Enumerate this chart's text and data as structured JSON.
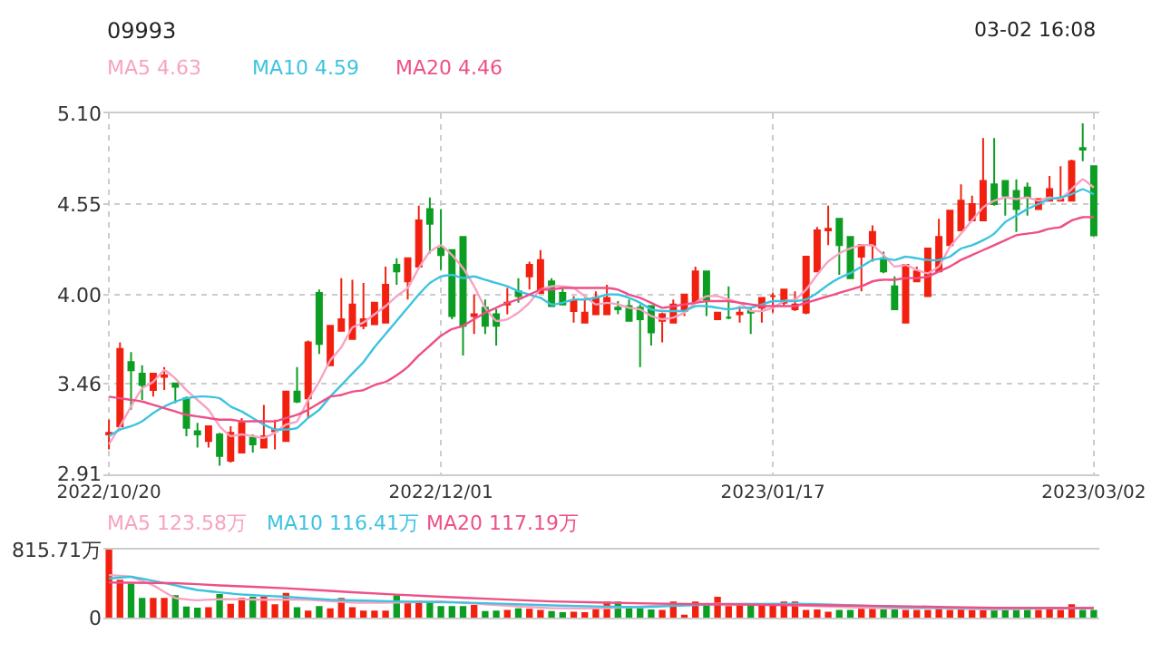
{
  "chart_data": [
    {
      "type": "candlestick",
      "title": "09993",
      "annotations": [
        "03-02 16:08"
      ],
      "categories": [
        "2022/10/20",
        null,
        null,
        null,
        null,
        null,
        null,
        null,
        null,
        null,
        null,
        null,
        null,
        null,
        null,
        null,
        null,
        null,
        null,
        null,
        null,
        null,
        null,
        null,
        null,
        null,
        null,
        null,
        null,
        null,
        "2022/12/01",
        null,
        null,
        null,
        null,
        null,
        null,
        null,
        null,
        null,
        null,
        null,
        null,
        null,
        null,
        null,
        null,
        null,
        null,
        null,
        null,
        null,
        null,
        null,
        null,
        null,
        null,
        null,
        null,
        null,
        "2023/01/17",
        null,
        null,
        null,
        null,
        null,
        null,
        null,
        null,
        null,
        null,
        null,
        null,
        null,
        null,
        null,
        null,
        null,
        null,
        null,
        null,
        null,
        null,
        null,
        null,
        null,
        null,
        null,
        null,
        "2023/03/02"
      ],
      "ohlc": [
        [
          3.15,
          3.24,
          3.06,
          3.16
        ],
        [
          3.2,
          3.71,
          3.2,
          3.67
        ],
        [
          3.59,
          3.65,
          3.3,
          3.54
        ],
        [
          3.52,
          3.57,
          3.36,
          3.45
        ],
        [
          3.42,
          3.52,
          3.38,
          3.52
        ],
        [
          3.5,
          3.56,
          3.42,
          3.51
        ],
        [
          3.46,
          3.46,
          3.34,
          3.44
        ],
        [
          3.37,
          3.38,
          3.14,
          3.19
        ],
        [
          3.17,
          3.22,
          3.07,
          3.15
        ],
        [
          3.11,
          3.2,
          3.07,
          3.2
        ],
        [
          3.15,
          3.16,
          2.96,
          3.02
        ],
        [
          2.99,
          3.2,
          2.98,
          3.16
        ],
        [
          3.04,
          3.25,
          3.04,
          3.22
        ],
        [
          3.13,
          3.15,
          3.04,
          3.09
        ],
        [
          3.07,
          3.33,
          3.07,
          3.14
        ],
        [
          3.17,
          3.24,
          3.06,
          3.18
        ],
        [
          3.11,
          3.41,
          3.11,
          3.41
        ],
        [
          3.41,
          3.56,
          3.34,
          3.35
        ],
        [
          3.37,
          3.72,
          3.25,
          3.71
        ],
        [
          4.01,
          4.03,
          3.64,
          3.7
        ],
        [
          3.57,
          3.81,
          3.57,
          3.81
        ],
        [
          3.78,
          4.1,
          3.78,
          3.85
        ],
        [
          3.73,
          4.09,
          3.73,
          3.94
        ],
        [
          3.81,
          4.07,
          3.79,
          3.85
        ],
        [
          3.82,
          3.95,
          3.82,
          3.95
        ],
        [
          3.83,
          4.17,
          3.83,
          4.06
        ],
        [
          4.18,
          4.22,
          4.06,
          4.14
        ],
        [
          4.08,
          4.22,
          3.97,
          4.22
        ],
        [
          4.17,
          4.54,
          4.17,
          4.45
        ],
        [
          4.52,
          4.59,
          4.25,
          4.43
        ],
        [
          4.28,
          4.52,
          4.15,
          4.24
        ],
        [
          4.27,
          4.27,
          3.85,
          3.87
        ],
        [
          4.35,
          4.35,
          3.63,
          3.81
        ],
        [
          3.87,
          4.0,
          3.76,
          3.88
        ],
        [
          3.92,
          3.97,
          3.76,
          3.81
        ],
        [
          3.88,
          3.91,
          3.69,
          3.81
        ],
        [
          3.94,
          4.04,
          3.88,
          3.95
        ],
        [
          4.02,
          4.1,
          3.95,
          3.99
        ],
        [
          4.11,
          4.2,
          4.03,
          4.18
        ],
        [
          4.01,
          4.27,
          4.01,
          4.21
        ],
        [
          4.08,
          4.1,
          3.93,
          3.93
        ],
        [
          4.01,
          4.05,
          3.94,
          3.94
        ],
        [
          3.9,
          3.99,
          3.83,
          3.96
        ],
        [
          3.83,
          3.98,
          3.83,
          3.89
        ],
        [
          3.88,
          4.02,
          3.88,
          3.98
        ],
        [
          3.88,
          4.06,
          3.88,
          3.98
        ],
        [
          3.92,
          3.96,
          3.88,
          3.91
        ],
        [
          3.93,
          3.97,
          3.84,
          3.84
        ],
        [
          3.92,
          3.94,
          3.56,
          3.85
        ],
        [
          3.93,
          3.93,
          3.69,
          3.77
        ],
        [
          3.84,
          3.89,
          3.71,
          3.88
        ],
        [
          3.83,
          3.97,
          3.83,
          3.94
        ],
        [
          3.9,
          4.0,
          3.87,
          4.0
        ],
        [
          3.96,
          4.17,
          3.96,
          4.14
        ],
        [
          4.14,
          4.14,
          3.87,
          3.97
        ],
        [
          3.85,
          3.89,
          3.85,
          3.89
        ],
        [
          3.86,
          4.05,
          3.85,
          3.86
        ],
        [
          3.88,
          3.93,
          3.83,
          3.89
        ],
        [
          3.9,
          3.92,
          3.76,
          3.89
        ],
        [
          3.92,
          3.98,
          3.83,
          3.98
        ],
        [
          3.99,
          4.01,
          3.89,
          3.99
        ],
        [
          3.95,
          4.03,
          3.93,
          4.03
        ],
        [
          3.91,
          4.02,
          3.9,
          3.94
        ],
        [
          3.89,
          4.23,
          3.88,
          4.23
        ],
        [
          4.14,
          4.41,
          4.14,
          4.39
        ],
        [
          4.39,
          4.54,
          4.3,
          4.4
        ],
        [
          4.46,
          4.46,
          4.12,
          4.3
        ],
        [
          4.35,
          4.35,
          4.1,
          4.1
        ],
        [
          4.23,
          4.3,
          4.02,
          4.3
        ],
        [
          4.3,
          4.42,
          4.2,
          4.38
        ],
        [
          4.22,
          4.26,
          4.13,
          4.14
        ],
        [
          4.05,
          4.11,
          3.91,
          3.91
        ],
        [
          3.83,
          4.18,
          3.83,
          4.18
        ],
        [
          4.08,
          4.17,
          4.08,
          4.14
        ],
        [
          3.99,
          4.28,
          3.99,
          4.28
        ],
        [
          4.14,
          4.46,
          4.14,
          4.35
        ],
        [
          4.3,
          4.51,
          4.3,
          4.51
        ],
        [
          4.39,
          4.67,
          4.39,
          4.57
        ],
        [
          4.45,
          4.6,
          4.45,
          4.55
        ],
        [
          4.45,
          4.95,
          4.45,
          4.69
        ],
        [
          4.67,
          4.95,
          4.54,
          4.55
        ],
        [
          4.69,
          4.69,
          4.48,
          4.6
        ],
        [
          4.63,
          4.7,
          4.38,
          4.52
        ],
        [
          4.65,
          4.68,
          4.48,
          4.59
        ],
        [
          4.52,
          4.58,
          4.52,
          4.58
        ],
        [
          4.57,
          4.72,
          4.57,
          4.64
        ],
        [
          4.57,
          4.78,
          4.57,
          4.58
        ],
        [
          4.57,
          4.82,
          4.57,
          4.81
        ],
        [
          4.89,
          5.04,
          4.81,
          4.88
        ],
        [
          4.78,
          4.78,
          4.36,
          4.36
        ]
      ],
      "series": [
        {
          "name": "MA5 4.63",
          "type": "line",
          "color": "#f7a3c2",
          "values": [
            3.09,
            3.2,
            3.32,
            3.43,
            3.47,
            3.54,
            3.49,
            3.42,
            3.36,
            3.3,
            3.2,
            3.14,
            3.15,
            3.14,
            3.13,
            3.16,
            3.21,
            3.23,
            3.36,
            3.47,
            3.6,
            3.68,
            3.8,
            3.83,
            3.88,
            3.93,
            3.99,
            4.04,
            4.16,
            4.26,
            4.3,
            4.24,
            4.16,
            4.05,
            3.92,
            3.84,
            3.85,
            3.89,
            3.95,
            4.03,
            4.05,
            4.05,
            4.04,
            3.99,
            3.94,
            3.95,
            3.94,
            3.92,
            3.91,
            3.87,
            3.85,
            3.86,
            3.89,
            3.95,
            3.99,
            3.99,
            3.97,
            3.95,
            3.9,
            3.9,
            3.92,
            3.96,
            3.97,
            4.03,
            4.12,
            4.2,
            4.25,
            4.28,
            4.3,
            4.3,
            4.24,
            4.17,
            4.18,
            4.15,
            4.13,
            4.17,
            4.29,
            4.37,
            4.45,
            4.53,
            4.57,
            4.59,
            4.58,
            4.59,
            4.57,
            4.59,
            4.58,
            4.64,
            4.7,
            4.65
          ]
        },
        {
          "name": "MA10 4.59",
          "type": "line",
          "color": "#3cc3e0",
          "values": [
            3.14,
            3.18,
            3.2,
            3.23,
            3.28,
            3.32,
            3.35,
            3.37,
            3.38,
            3.38,
            3.37,
            3.32,
            3.29,
            3.25,
            3.21,
            3.18,
            3.18,
            3.19,
            3.25,
            3.3,
            3.38,
            3.45,
            3.52,
            3.59,
            3.68,
            3.76,
            3.84,
            3.92,
            4.0,
            4.07,
            4.11,
            4.12,
            4.1,
            4.11,
            4.09,
            4.07,
            4.05,
            4.02,
            4.0,
            3.98,
            3.94,
            3.95,
            3.97,
            3.97,
            3.98,
            4.0,
            4.0,
            3.98,
            3.95,
            3.91,
            3.9,
            3.9,
            3.9,
            3.93,
            3.93,
            3.92,
            3.91,
            3.92,
            3.92,
            3.94,
            3.96,
            3.96,
            3.96,
            3.97,
            4.01,
            4.06,
            4.1,
            4.13,
            4.17,
            4.21,
            4.22,
            4.21,
            4.23,
            4.22,
            4.21,
            4.21,
            4.23,
            4.28,
            4.3,
            4.33,
            4.37,
            4.44,
            4.48,
            4.52,
            4.55,
            4.58,
            4.59,
            4.61,
            4.64,
            4.61
          ]
        },
        {
          "name": "MA20 4.46",
          "type": "line",
          "color": "#ee4f86",
          "values": [
            3.38,
            3.37,
            3.36,
            3.35,
            3.33,
            3.31,
            3.29,
            3.27,
            3.26,
            3.25,
            3.24,
            3.24,
            3.23,
            3.23,
            3.23,
            3.23,
            3.25,
            3.27,
            3.3,
            3.34,
            3.38,
            3.39,
            3.41,
            3.42,
            3.45,
            3.47,
            3.51,
            3.56,
            3.63,
            3.69,
            3.75,
            3.79,
            3.81,
            3.85,
            3.89,
            3.92,
            3.95,
            3.97,
            4.0,
            4.03,
            4.03,
            4.04,
            4.04,
            4.04,
            4.04,
            4.04,
            4.03,
            4.0,
            3.98,
            3.95,
            3.92,
            3.93,
            3.94,
            3.95,
            3.96,
            3.96,
            3.96,
            3.95,
            3.94,
            3.93,
            3.93,
            3.93,
            3.93,
            3.95,
            3.97,
            3.99,
            4.01,
            4.03,
            4.05,
            4.08,
            4.09,
            4.09,
            4.1,
            4.1,
            4.11,
            4.14,
            4.17,
            4.21,
            4.24,
            4.27,
            4.3,
            4.33,
            4.36,
            4.37,
            4.38,
            4.4,
            4.41,
            4.45,
            4.47,
            4.47
          ]
        }
      ],
      "ylim": [
        2.91,
        5.1
      ],
      "yticks": [
        2.91,
        3.46,
        {
          "value": 4.0,
          "label": "4.00"
        },
        4.55,
        {
          "value": 5.1,
          "label": "5.10"
        }
      ],
      "grid": true
    },
    {
      "type": "bar",
      "categories": [
        null,
        null,
        null,
        null,
        null,
        null,
        null,
        null,
        null,
        null,
        null,
        null,
        null,
        null,
        null,
        null,
        null,
        null,
        null,
        null,
        null,
        null,
        null,
        null,
        null,
        null,
        null,
        null,
        null,
        null,
        null,
        null,
        null,
        null,
        null,
        null,
        null,
        null,
        null,
        null,
        null,
        null,
        null,
        null,
        null,
        null,
        null,
        null,
        null,
        null,
        null,
        null,
        null,
        null,
        null,
        null,
        null,
        null,
        null,
        null,
        null,
        null,
        null,
        null,
        null,
        null,
        null,
        null,
        null,
        null,
        null,
        null,
        null,
        null,
        null,
        null,
        null,
        null,
        null,
        null,
        null,
        null,
        null,
        null,
        null,
        null,
        null,
        null,
        null,
        null
      ],
      "values": [
        815.71,
        456,
        408,
        238,
        238,
        238,
        272,
        136,
        122,
        129,
        286,
        170,
        238,
        252,
        252,
        163,
        299,
        129,
        88,
        143,
        116,
        238,
        129,
        88,
        88,
        88,
        272,
        184,
        204,
        190,
        143,
        143,
        143,
        156,
        82,
        88,
        95,
        116,
        109,
        95,
        82,
        68,
        75,
        68,
        109,
        197,
        197,
        116,
        116,
        102,
        95,
        197,
        34,
        197,
        177,
        252,
        143,
        150,
        150,
        177,
        163,
        197,
        197,
        95,
        102,
        75,
        95,
        95,
        109,
        109,
        102,
        102,
        95,
        95,
        95,
        109,
        95,
        109,
        95,
        95,
        95,
        95,
        95,
        95,
        95,
        129,
        95,
        163,
        95,
        95
      ],
      "colors": [
        "#f2200f",
        "#f2200f",
        "#0c9d23",
        "#0c9d23",
        "#f2200f",
        "#f2200f",
        "#0c9d23",
        "#0c9d23",
        "#0c9d23",
        "#f2200f",
        "#0c9d23",
        "#f2200f",
        "#f2200f",
        "#0c9d23",
        "#f2200f",
        "#f2200f",
        "#f2200f",
        "#0c9d23",
        "#f2200f",
        "#0c9d23",
        "#f2200f",
        "#f2200f",
        "#f2200f",
        "#f2200f",
        "#f2200f",
        "#f2200f",
        "#0c9d23",
        "#f2200f",
        "#f2200f",
        "#0c9d23",
        "#0c9d23",
        "#0c9d23",
        "#0c9d23",
        "#f2200f",
        "#0c9d23",
        "#0c9d23",
        "#f2200f",
        "#0c9d23",
        "#f2200f",
        "#f2200f",
        "#0c9d23",
        "#0c9d23",
        "#f2200f",
        "#f2200f",
        "#f2200f",
        "#f2200f",
        "#0c9d23",
        "#0c9d23",
        "#0c9d23",
        "#0c9d23",
        "#f2200f",
        "#f2200f",
        "#f2200f",
        "#f2200f",
        "#0c9d23",
        "#f2200f",
        "#f2200f",
        "#f2200f",
        "#0c9d23",
        "#f2200f",
        "#f2200f",
        "#f2200f",
        "#f2200f",
        "#f2200f",
        "#f2200f",
        "#f2200f",
        "#0c9d23",
        "#0c9d23",
        "#f2200f",
        "#f2200f",
        "#0c9d23",
        "#0c9d23",
        "#f2200f",
        "#f2200f",
        "#f2200f",
        "#f2200f",
        "#f2200f",
        "#f2200f",
        "#f2200f",
        "#f2200f",
        "#0c9d23",
        "#0c9d23",
        "#0c9d23",
        "#0c9d23",
        "#f2200f",
        "#f2200f",
        "#f2200f",
        "#f2200f",
        "#0c9d23",
        "#0c9d23"
      ],
      "series": [
        {
          "name": "MA5 123.58万",
          "type": "line",
          "color": "#f7a3c2",
          "values": [
            510,
            null,
            490,
            null,
            388,
            null,
            238,
            null,
            211,
            null,
            224,
            null,
            null,
            null,
            218,
            null,
            null,
            null,
            218,
            null,
            null,
            null,
            184,
            null,
            null,
            null,
            184,
            null,
            null,
            null,
            197,
            null,
            null,
            null,
            163,
            null,
            null,
            null,
            null,
            null,
            116,
            null,
            null,
            null,
            null,
            116,
            null,
            null,
            null,
            null,
            150,
            null,
            null,
            null,
            null,
            170,
            null,
            null,
            null,
            null,
            163,
            null,
            null,
            null,
            null,
            136,
            null,
            null,
            null,
            null,
            116,
            null,
            null,
            null,
            null,
            116,
            null,
            null,
            null,
            null,
            102,
            null,
            null,
            null,
            null,
            116,
            null,
            null,
            null,
            123.58
          ]
        },
        {
          "name": "MA10 116.41万",
          "type": "line",
          "color": "#3cc3e0",
          "values": [
            469,
            null,
            490,
            null,
            442,
            null,
            388,
            null,
            333,
            null,
            null,
            null,
            279,
            null,
            null,
            null,
            252,
            null,
            null,
            null,
            218,
            null,
            null,
            null,
            null,
            null,
            197,
            null,
            null,
            null,
            null,
            null,
            184,
            null,
            null,
            null,
            null,
            null,
            null,
            null,
            150,
            null,
            null,
            null,
            null,
            null,
            null,
            null,
            129,
            null,
            null,
            null,
            null,
            null,
            null,
            163,
            null,
            null,
            null,
            null,
            null,
            null,
            170,
            null,
            null,
            null,
            156,
            null,
            null,
            null,
            null,
            null,
            129,
            null,
            null,
            null,
            null,
            null,
            null,
            null,
            116,
            null,
            null,
            null,
            null,
            null,
            null,
            null,
            null,
            116.41
          ]
        },
        {
          "name": "MA20 117.19万",
          "type": "line",
          "color": "#ee4f86",
          "values": [
            422,
            null,
            null,
            null,
            null,
            null,
            415,
            null,
            null,
            null,
            388,
            null,
            null,
            null,
            null,
            null,
            354,
            null,
            null,
            null,
            null,
            null,
            306,
            null,
            null,
            null,
            null,
            null,
            null,
            null,
            252,
            null,
            null,
            null,
            null,
            null,
            null,
            null,
            null,
            null,
            197,
            null,
            null,
            null,
            null,
            null,
            null,
            null,
            null,
            null,
            170,
            null,
            null,
            null,
            null,
            null,
            null,
            null,
            null,
            null,
            156,
            null,
            null,
            null,
            null,
            null,
            null,
            null,
            null,
            null,
            143,
            null,
            null,
            null,
            null,
            null,
            null,
            null,
            null,
            null,
            122,
            null,
            null,
            null,
            null,
            null,
            null,
            null,
            null,
            117.19
          ]
        }
      ],
      "ylim": [
        0,
        815.71
      ],
      "yticks": [
        0,
        {
          "value": 815.71,
          "label": "815.71万"
        }
      ],
      "tick_labels": "y",
      "grid": true
    }
  ]
}
